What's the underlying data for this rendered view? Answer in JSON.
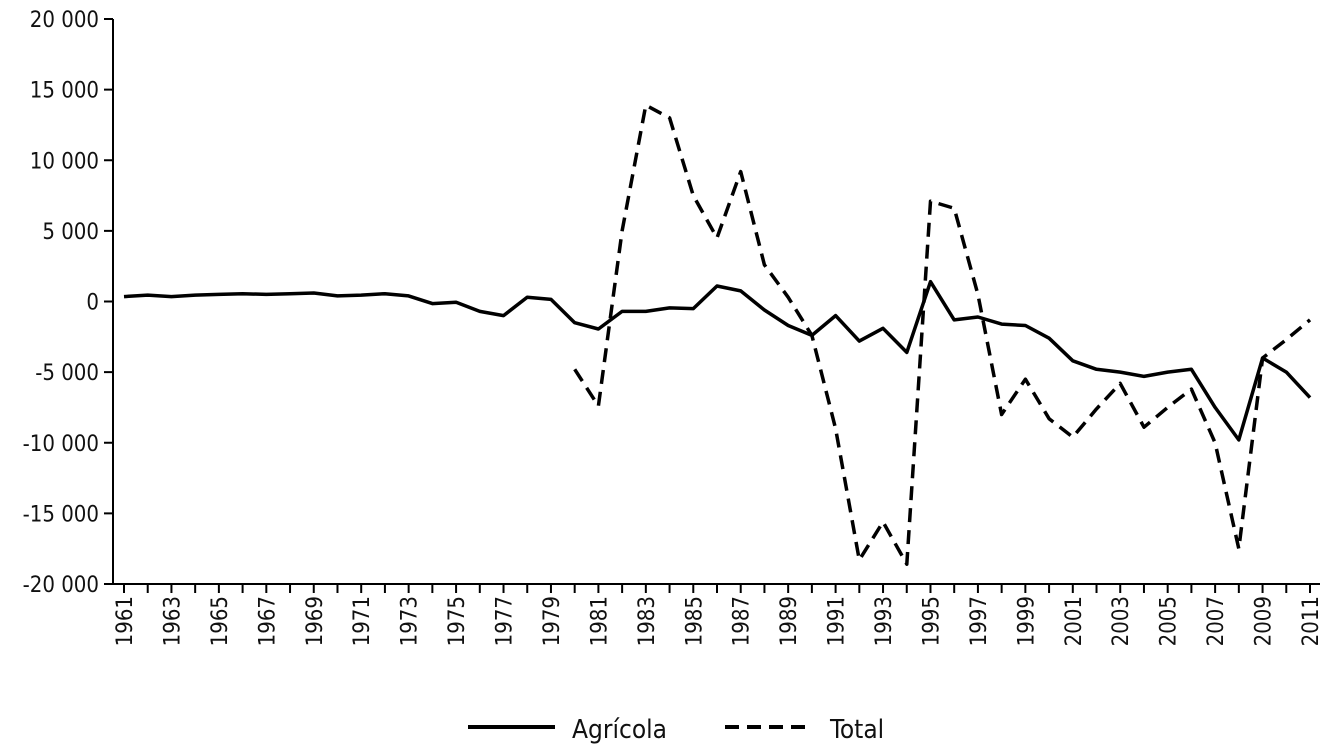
{
  "chart_data": {
    "type": "line",
    "title": "",
    "xlabel": "",
    "ylabel": "",
    "ylim": [
      -20000,
      20000
    ],
    "y_ticks": [
      20000,
      15000,
      10000,
      5000,
      0,
      -5000,
      -10000,
      -15000,
      -20000
    ],
    "y_tick_labels": [
      "20 000",
      "15 000",
      "10 000",
      "5 000",
      "0",
      "-5 000",
      "-10 000",
      "-15 000",
      "-20 000"
    ],
    "x_tick_labels": [
      "1961",
      "1963",
      "1965",
      "1967",
      "1969",
      "1971",
      "1973",
      "1975",
      "1977",
      "1979",
      "1981",
      "1983",
      "1985",
      "1987",
      "1989",
      "1991",
      "1993",
      "1995",
      "1997",
      "1999",
      "2001",
      "2003",
      "2005",
      "2007",
      "2009",
      "2011"
    ],
    "x": [
      1961,
      1962,
      1963,
      1964,
      1965,
      1966,
      1967,
      1968,
      1969,
      1970,
      1971,
      1972,
      1973,
      1974,
      1975,
      1976,
      1977,
      1978,
      1979,
      1980,
      1981,
      1982,
      1983,
      1984,
      1985,
      1986,
      1987,
      1988,
      1989,
      1990,
      1991,
      1992,
      1993,
      1994,
      1995,
      1996,
      1997,
      1998,
      1999,
      2000,
      2001,
      2002,
      2003,
      2004,
      2005,
      2006,
      2007,
      2008,
      2009,
      2010,
      2011
    ],
    "legend_position": "bottom-center",
    "series": [
      {
        "name": "Agrícola",
        "style": "solid",
        "color": "#000000",
        "values": [
          350,
          450,
          350,
          450,
          500,
          550,
          500,
          550,
          600,
          400,
          450,
          550,
          400,
          -150,
          -50,
          -700,
          -1000,
          300,
          150,
          -1500,
          -1950,
          -700,
          -700,
          -450,
          -500,
          1100,
          750,
          -600,
          -1700,
          -2400,
          -1000,
          -2800,
          -1900,
          -3600,
          1400,
          -1300,
          -1100,
          -1600,
          -1700,
          -2600,
          -4200,
          -4800,
          -5000,
          -5300,
          -5000,
          -4800,
          -7500,
          -9800,
          -4000,
          -5000,
          -6800
        ]
      },
      {
        "name": "Total",
        "style": "dashed",
        "color": "#000000",
        "values": [
          null,
          null,
          null,
          null,
          null,
          null,
          null,
          null,
          null,
          null,
          null,
          null,
          null,
          null,
          null,
          null,
          null,
          null,
          null,
          -4800,
          -7400,
          5000,
          13900,
          13000,
          7500,
          4500,
          9200,
          2600,
          300,
          -2400,
          -9000,
          -18300,
          -15600,
          -18600,
          7100,
          6600,
          500,
          -8000,
          -5500,
          -8300,
          -9600,
          -7600,
          -5800,
          -8900,
          -7500,
          -6200,
          -10000,
          -17500,
          -4000,
          -2700,
          -1300
        ]
      }
    ]
  }
}
